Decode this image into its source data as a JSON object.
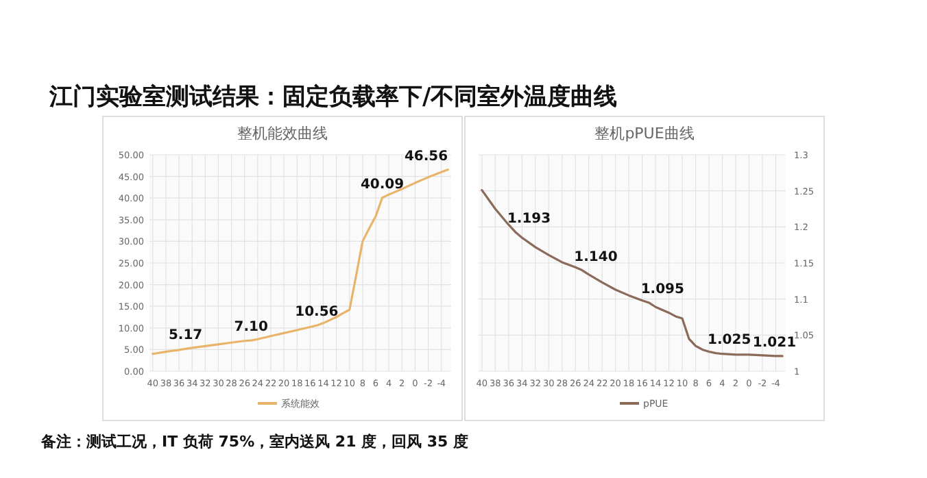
{
  "chart_data": [
    {
      "type": "other",
      "title": "江门实验室测试结果：固定负载率下/不同室外温度曲线",
      "annotations": [
        "备注：测试工况，IT 负荷 75%，室内送风 21 度，回风 35 度"
      ]
    },
    {
      "type": "line",
      "title": "整机能效曲线",
      "xlim": [
        40.5,
        -5.5
      ],
      "xticks": [
        40,
        38,
        36,
        34,
        32,
        30,
        28,
        26,
        24,
        22,
        20,
        18,
        16,
        14,
        12,
        10,
        8,
        6,
        4,
        2,
        0,
        -2,
        -4
      ],
      "ylim": [
        0,
        50
      ],
      "yticks": [
        {
          "value": 0,
          "label": "0.00"
        },
        {
          "value": 5,
          "label": "5.00"
        },
        {
          "value": 10,
          "label": "10.00"
        },
        {
          "value": 15,
          "label": "15.00"
        },
        {
          "value": 20,
          "label": "20.00"
        },
        {
          "value": 25,
          "label": "25.00"
        },
        {
          "value": 30,
          "label": "30.00"
        },
        {
          "value": 35,
          "label": "35.00"
        },
        {
          "value": 40,
          "label": "40.00"
        },
        {
          "value": 45,
          "label": "45.00"
        },
        {
          "value": 50,
          "label": "50.00"
        }
      ],
      "grid": true,
      "legend": "bottom",
      "series": [
        {
          "name": "系统能效",
          "color": "#e8b46a",
          "x": [
            40,
            38,
            36,
            35,
            34,
            32,
            30,
            28,
            26,
            25,
            24,
            22,
            20,
            18,
            16,
            15,
            14,
            12,
            11,
            10,
            9,
            8,
            7,
            6,
            5,
            4,
            2,
            0,
            -2,
            -4,
            -5
          ],
          "values": [
            4.0,
            4.5,
            4.9,
            5.17,
            5.4,
            5.8,
            6.2,
            6.6,
            7.0,
            7.1,
            7.4,
            8.1,
            8.8,
            9.5,
            10.2,
            10.56,
            11.1,
            12.5,
            13.4,
            14.2,
            22,
            30,
            33,
            35.8,
            40.09,
            40.8,
            42.1,
            43.5,
            44.8,
            46.0,
            46.56
          ],
          "value_labels": [
            null,
            null,
            null,
            "5.17",
            null,
            null,
            null,
            null,
            null,
            "7.10",
            null,
            null,
            null,
            null,
            null,
            "10.56",
            null,
            null,
            null,
            null,
            null,
            null,
            null,
            null,
            "40.09",
            null,
            null,
            null,
            null,
            null,
            "46.56"
          ]
        }
      ]
    },
    {
      "type": "line",
      "title": "整机pPUE曲线",
      "xlim": [
        40.5,
        -5.5
      ],
      "xticks": [
        40,
        38,
        36,
        34,
        32,
        30,
        28,
        26,
        24,
        22,
        20,
        18,
        16,
        14,
        12,
        10,
        8,
        6,
        4,
        2,
        0,
        -2,
        -4
      ],
      "y2lim": [
        1,
        1.3
      ],
      "y2ticks": [
        1,
        1.05,
        1.1,
        1.15,
        1.2,
        1.25,
        1.3
      ],
      "grid": true,
      "legend": "bottom",
      "series": [
        {
          "name": "pPUE",
          "color": "#8b6a5a",
          "axis": "y2",
          "x": [
            40,
            38,
            36,
            35,
            34,
            32,
            30,
            28,
            26,
            25,
            24,
            22,
            20,
            18,
            16,
            15,
            14,
            12,
            11,
            10,
            9,
            8,
            7,
            6,
            5,
            4,
            2,
            0,
            -2,
            -4,
            -5
          ],
          "values": [
            1.251,
            1.225,
            1.203,
            1.193,
            1.185,
            1.172,
            1.161,
            1.151,
            1.144,
            1.14,
            1.134,
            1.123,
            1.113,
            1.105,
            1.098,
            1.095,
            1.089,
            1.081,
            1.076,
            1.073,
            1.045,
            1.035,
            1.03,
            1.027,
            1.025,
            1.024,
            1.023,
            1.023,
            1.022,
            1.021,
            1.021
          ],
          "value_labels": [
            null,
            null,
            null,
            "1.193",
            null,
            null,
            null,
            null,
            null,
            "1.140",
            null,
            null,
            null,
            null,
            null,
            "1.095",
            null,
            null,
            null,
            null,
            null,
            null,
            null,
            null,
            "1.025",
            null,
            null,
            null,
            null,
            null,
            "1.021"
          ]
        }
      ]
    }
  ]
}
